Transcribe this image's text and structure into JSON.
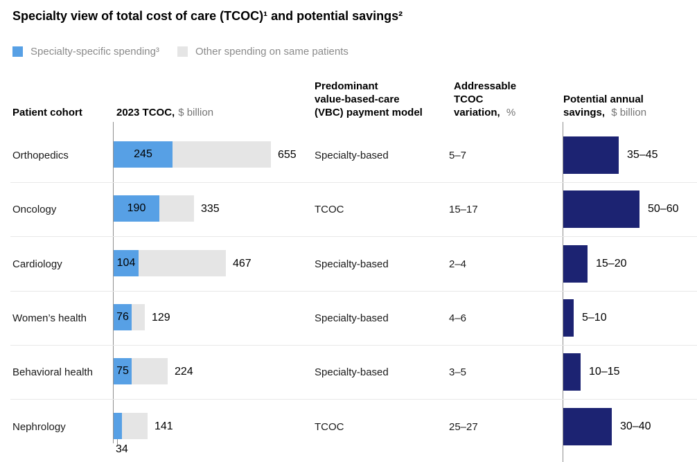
{
  "title": "Specialty view of total cost of care (TCOC)¹ and potential savings²",
  "legend": {
    "specialty": "Specialty-specific spending³",
    "other": "Other spending on same patients"
  },
  "headers": {
    "cohort": "Patient cohort",
    "tcoc_bold": "2023 TCOC,",
    "tcoc_unit": "$ billion",
    "vbc_line1": "Predominant",
    "vbc_line2": "value-based-care",
    "vbc_line3": "(VBC) payment model",
    "variation_line1": "Addressable",
    "variation_line2": "TCOC",
    "variation_line3_bold": "variation,",
    "variation_unit": "%",
    "savings_line1": "Potential annual",
    "savings_line2_bold": "savings,",
    "savings_unit": "$ billion"
  },
  "rows": [
    {
      "cohort": "Orthopedics",
      "spend": 245,
      "spend_label": "245",
      "total": 655,
      "total_label": "655",
      "vbc": "Specialty-based",
      "variation": "5–7",
      "savings_label": "35–45",
      "savings_mid": 40
    },
    {
      "cohort": "Oncology",
      "spend": 190,
      "spend_label": "190",
      "total": 335,
      "total_label": "335",
      "vbc": "TCOC",
      "variation": "15–17",
      "savings_label": "50–60",
      "savings_mid": 55
    },
    {
      "cohort": "Cardiology",
      "spend": 104,
      "spend_label": "104",
      "total": 467,
      "total_label": "467",
      "vbc": "Specialty-based",
      "variation": "2–4",
      "savings_label": "15–20",
      "savings_mid": 17.5
    },
    {
      "cohort": "Women’s health",
      "spend": 76,
      "spend_label": "76",
      "total": 129,
      "total_label": "129",
      "vbc": "Specialty-based",
      "variation": "4–6",
      "savings_label": "5–10",
      "savings_mid": 7.5
    },
    {
      "cohort": "Behavioral health",
      "spend": 75,
      "spend_label": "75",
      "total": 224,
      "total_label": "224",
      "vbc": "Specialty-based",
      "variation": "3–5",
      "savings_label": "10–15",
      "savings_mid": 12.5
    },
    {
      "cohort": "Nephrology",
      "spend": 34,
      "spend_label": "34",
      "total": 141,
      "total_label": "141",
      "vbc": "TCOC",
      "variation": "25–27",
      "savings_label": "30–40",
      "savings_mid": 35
    }
  ],
  "chart_data": {
    "type": "bar",
    "orientation": "horizontal",
    "title": "Specialty view of total cost of care (TCOC)¹ and potential savings²",
    "categories": [
      "Orthopedics",
      "Oncology",
      "Cardiology",
      "Women’s health",
      "Behavioral health",
      "Nephrology"
    ],
    "series": [
      {
        "name": "Specialty-specific spending³, $ billion",
        "values": [
          245,
          190,
          104,
          76,
          75,
          34
        ],
        "color": "#57A0E5"
      },
      {
        "name": "Other spending on same patients, $ billion",
        "values": [
          410,
          145,
          363,
          53,
          149,
          107
        ],
        "color": "#E5E5E5"
      },
      {
        "name": "2023 TCOC total, $ billion",
        "values": [
          655,
          335,
          467,
          129,
          224,
          141
        ]
      },
      {
        "name": "Potential annual savings, $ billion",
        "values": [
          "35–45",
          "50–60",
          "15–20",
          "5–10",
          "10–15",
          "30–40"
        ],
        "color": "#1C2372"
      }
    ],
    "vbc_payment_model": [
      "Specialty-based",
      "TCOC",
      "Specialty-based",
      "Specialty-based",
      "Specialty-based",
      "TCOC"
    ],
    "addressable_tcoc_variation_pct": [
      "5–7",
      "15–17",
      "2–4",
      "4–6",
      "3–5",
      "25–27"
    ],
    "legend_position": "top",
    "grid": false
  },
  "colors": {
    "specialty_blue": "#57A0E5",
    "other_gray": "#E5E5E5",
    "savings_navy": "#1C2372",
    "axis_gray": "#8F8F8F",
    "separator": "#E8E8E8",
    "unit_text": "#757575",
    "legend_text": "#8A8A8A"
  }
}
